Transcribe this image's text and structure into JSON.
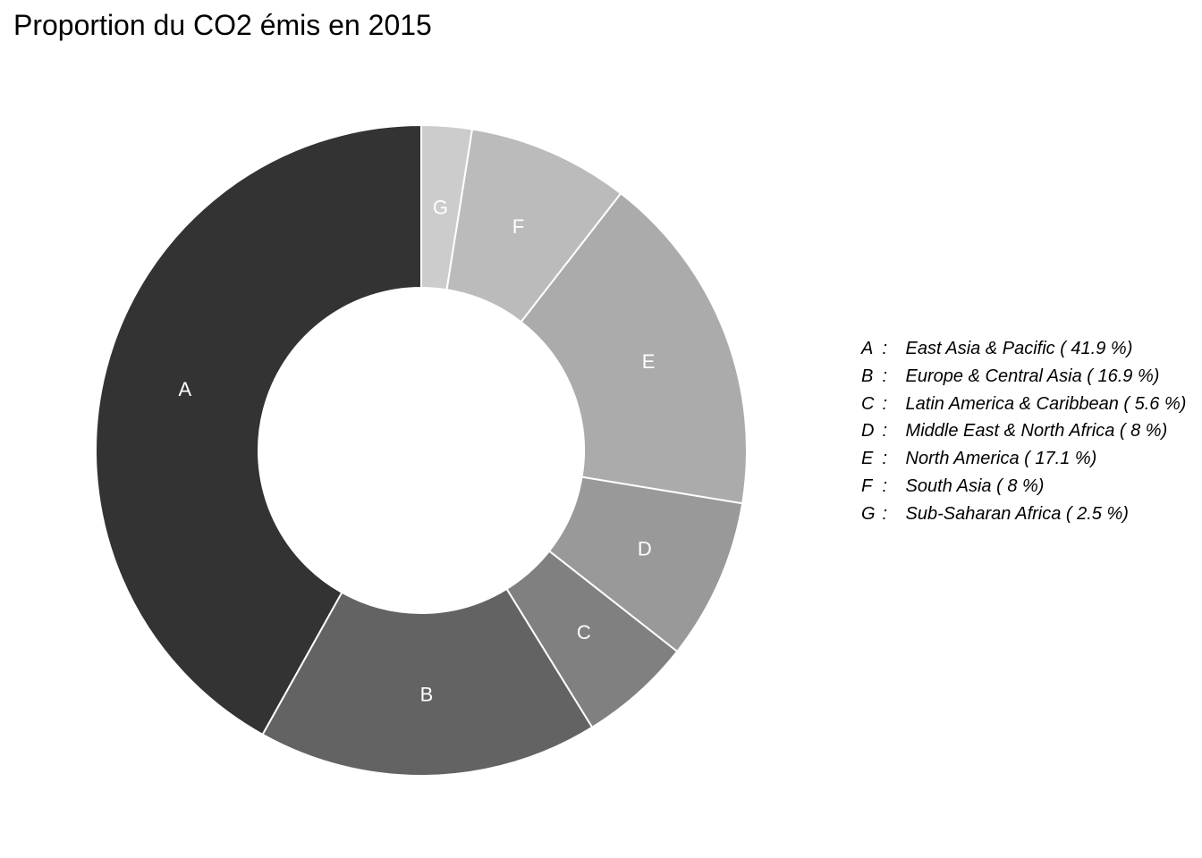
{
  "chart_data": {
    "type": "pie",
    "title": "Proportion du CO2 émis en 2015",
    "slices": [
      {
        "label": "A",
        "name": "East Asia & Pacific",
        "value": 41.9,
        "color": "#333333"
      },
      {
        "label": "B",
        "name": "Europe & Central Asia",
        "value": 16.9,
        "color": "#636363"
      },
      {
        "label": "C",
        "name": "Latin America & Caribbean",
        "value": 5.6,
        "color": "#808080"
      },
      {
        "label": "D",
        "name": "Middle East & North Africa",
        "value": 8,
        "color": "#999999"
      },
      {
        "label": "E",
        "name": "North America",
        "value": 17.1,
        "color": "#ababab"
      },
      {
        "label": "F",
        "name": "South Asia",
        "value": 8,
        "color": "#bbbbbb"
      },
      {
        "label": "G",
        "name": "Sub-Saharan Africa",
        "value": 2.5,
        "color": "#cccccc"
      }
    ],
    "legend_position": "right",
    "separator": ":",
    "unit": "%",
    "direction": "counter-clockwise from top",
    "hole": "donut"
  }
}
